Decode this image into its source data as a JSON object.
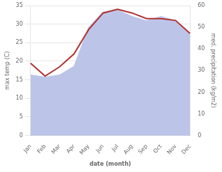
{
  "chart_data": {
    "type": "line",
    "xlabel": "date (month)",
    "ylabel": "max temp (C)",
    "y2label": "med. precipitation (kg/m2)",
    "categories": [
      "Jan",
      "Feb",
      "Mar",
      "Apr",
      "May",
      "Jun",
      "Jul",
      "Aug",
      "Sep",
      "Oct",
      "Nov",
      "Dec"
    ],
    "series": [
      {
        "type": "area",
        "axis": "y2",
        "color": "#bcc5e8",
        "values": [
          28.0,
          27.0,
          28.0,
          32.0,
          50.0,
          57.0,
          58.0,
          55.0,
          53.0,
          55.0,
          53.0,
          47.0
        ]
      },
      {
        "type": "line",
        "color": "#b03030",
        "values": [
          19.5,
          16.0,
          18.5,
          22.0,
          28.5,
          33.0,
          34.0,
          33.0,
          31.5,
          31.5,
          31.0,
          27.5
        ]
      }
    ],
    "ylim": [
      0,
      35
    ],
    "yticks": [
      0,
      5,
      10,
      15,
      20,
      25,
      30,
      35
    ],
    "y2lim": [
      0,
      60
    ],
    "y2ticks": [
      0,
      10,
      20,
      30,
      40,
      50,
      60
    ],
    "grid": true
  }
}
